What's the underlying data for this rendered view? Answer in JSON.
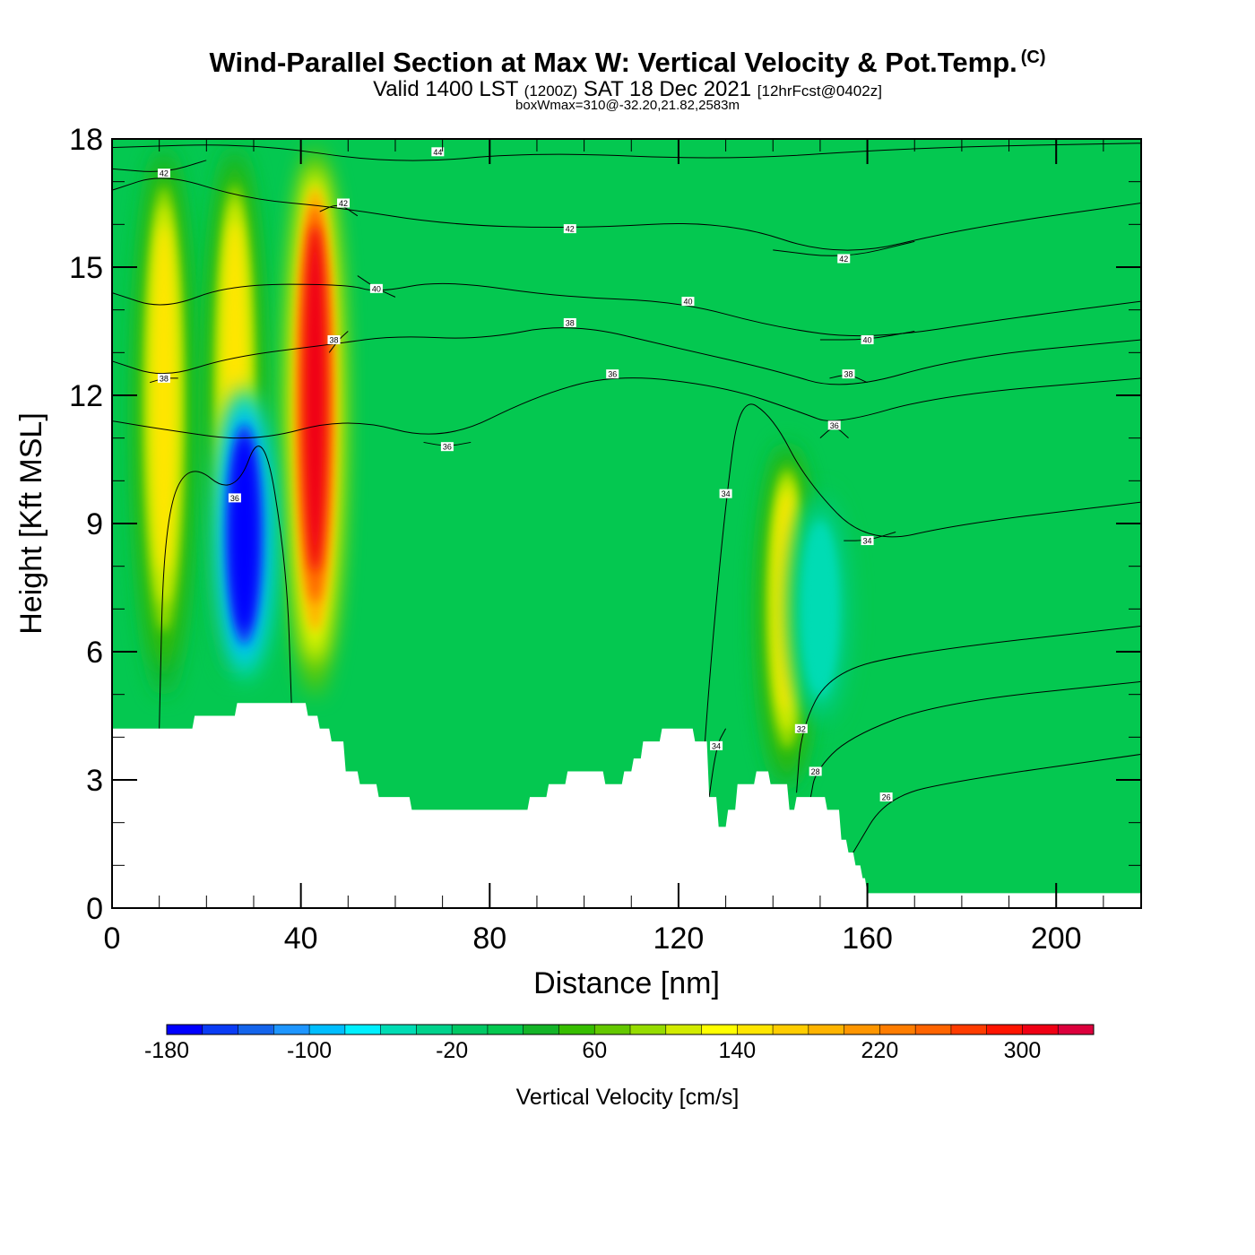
{
  "header": {
    "title": "Wind-Parallel Section at Max W: Vertical Velocity & Pot.Temp.",
    "copyright": "(C)",
    "valid_prefix": "Valid 1400 LST",
    "valid_zulu": "(1200Z)",
    "valid_date": "SAT 18 Dec 2021",
    "forecast": "[12hrFcst@0402z]",
    "box_info": "boxWmax=310@-32.20,21.82,2583m"
  },
  "chart_data": {
    "type": "heatmap",
    "xlabel": "Distance [nm]",
    "ylabel": "Height [Kft MSL]",
    "xlim": [
      0,
      218
    ],
    "ylim": [
      0,
      18
    ],
    "x_ticks": [
      0,
      40,
      80,
      120,
      160,
      200
    ],
    "y_ticks": [
      0,
      3,
      6,
      9,
      12,
      15,
      18
    ],
    "x_tick_labels": [
      "0",
      "40",
      "80",
      "120",
      "160",
      "200"
    ],
    "y_tick_labels": [
      "0",
      "3",
      "6",
      "9",
      "12",
      "15",
      "18"
    ],
    "background_level_color": "#04c850",
    "updrafts": [
      {
        "x": 11,
        "y_from": 4.5,
        "y_to": 18,
        "peak": 140
      },
      {
        "x": 26,
        "y_from": 5,
        "y_to": 18,
        "peak": 140
      },
      {
        "x": 43,
        "y_from": 4.5,
        "y_to": 18,
        "peak": 310
      },
      {
        "x": 143,
        "y_from": 2.5,
        "y_to": 11,
        "peak": 140
      }
    ],
    "downdrafts": [
      {
        "x": 28,
        "y_from": 5,
        "y_to": 12.5,
        "peak": -180
      },
      {
        "x": 150,
        "y_from": 4,
        "y_to": 10,
        "peak": -60
      }
    ],
    "terrain": {
      "x": [
        0,
        17,
        17.5,
        26,
        26.5,
        41,
        41.5,
        43.5,
        44,
        46,
        46.5,
        49,
        49.5,
        52,
        52.5,
        56,
        56.5,
        60,
        60.5,
        63,
        63.5,
        88,
        88.5,
        92,
        92.5,
        96,
        96.5,
        104,
        104.5,
        108,
        108.5,
        110,
        110.5,
        112,
        112.5,
        116,
        116.5,
        123,
        123.5,
        126,
        126.5,
        128,
        128.5,
        130,
        130.5,
        132,
        132.5,
        136,
        136.5,
        139,
        139.5,
        143,
        143.5,
        144.5,
        145,
        151,
        151.5,
        154,
        154.5,
        155.5,
        156,
        157,
        157.5,
        158.5,
        159,
        159.5,
        160,
        218
      ],
      "y": [
        4.2,
        4.2,
        4.5,
        4.5,
        4.8,
        4.8,
        4.5,
        4.5,
        4.2,
        4.2,
        3.9,
        3.9,
        3.2,
        3.2,
        2.9,
        2.9,
        2.6,
        2.6,
        2.6,
        2.6,
        2.3,
        2.3,
        2.6,
        2.6,
        2.9,
        2.9,
        3.2,
        3.2,
        2.9,
        2.9,
        3.2,
        3.2,
        3.5,
        3.5,
        3.9,
        3.9,
        4.2,
        4.2,
        3.9,
        3.9,
        2.6,
        2.6,
        1.9,
        1.9,
        2.3,
        2.3,
        2.9,
        2.9,
        3.2,
        3.2,
        2.9,
        2.9,
        2.3,
        2.3,
        2.6,
        2.6,
        2.3,
        2.3,
        1.6,
        1.6,
        1.3,
        1.3,
        1.0,
        1.0,
        0.7,
        0.7,
        0.35,
        0.35
      ]
    },
    "contours": [
      {
        "label": "44",
        "points": [
          [
            0,
            17.8
          ],
          [
            30,
            17.9
          ],
          [
            60,
            17.4
          ],
          [
            90,
            17.7
          ],
          [
            130,
            17.5
          ],
          [
            170,
            17.8
          ],
          [
            218,
            17.9
          ]
        ],
        "label_at": [
          69,
          17.7
        ]
      },
      {
        "label": "42",
        "points": [
          [
            0,
            16.8
          ],
          [
            11,
            17.2
          ],
          [
            28,
            16.6
          ],
          [
            48,
            16.4
          ],
          [
            70,
            16.0
          ],
          [
            98,
            15.9
          ],
          [
            130,
            16.1
          ],
          [
            154,
            15.2
          ],
          [
            180,
            15.9
          ],
          [
            218,
            16.5
          ]
        ],
        "label_at": [
          97,
          15.9
        ]
      },
      {
        "label": "42",
        "points": [
          [
            0,
            17.3
          ],
          [
            11,
            17.2
          ],
          [
            20,
            17.5
          ]
        ],
        "label_at": [
          11,
          17.2
        ]
      },
      {
        "label": "42",
        "points": [
          [
            140,
            15.4
          ],
          [
            155,
            15.2
          ],
          [
            170,
            15.6
          ]
        ],
        "label_at": [
          155,
          15.2
        ]
      },
      {
        "label": "42",
        "points": [
          [
            44,
            16.3
          ],
          [
            48,
            16.5
          ],
          [
            52,
            16.2
          ]
        ],
        "label_at": [
          49,
          16.5
        ]
      },
      {
        "label": "40",
        "points": [
          [
            0,
            14.4
          ],
          [
            11,
            14.0
          ],
          [
            25,
            14.6
          ],
          [
            50,
            14.6
          ],
          [
            56,
            14.4
          ],
          [
            70,
            14.7
          ],
          [
            95,
            14.3
          ],
          [
            120,
            14.2
          ],
          [
            140,
            13.6
          ],
          [
            160,
            13.3
          ],
          [
            190,
            13.8
          ],
          [
            218,
            14.2
          ]
        ],
        "label_at": [
          122,
          14.2
        ]
      },
      {
        "label": "40",
        "points": [
          [
            150,
            13.3
          ],
          [
            160,
            13.3
          ],
          [
            170,
            13.5
          ]
        ],
        "label_at": [
          160,
          13.3
        ]
      },
      {
        "label": "40",
        "points": [
          [
            52,
            14.8
          ],
          [
            56,
            14.5
          ],
          [
            60,
            14.3
          ]
        ],
        "label_at": [
          56,
          14.5
        ]
      },
      {
        "label": "38",
        "points": [
          [
            0,
            12.8
          ],
          [
            11,
            12.4
          ],
          [
            25,
            12.9
          ],
          [
            47,
            13.2
          ],
          [
            60,
            13.4
          ],
          [
            78,
            13.3
          ],
          [
            97,
            13.7
          ],
          [
            120,
            13.1
          ],
          [
            140,
            12.6
          ],
          [
            155,
            12.1
          ],
          [
            180,
            12.9
          ],
          [
            218,
            13.3
          ]
        ],
        "label_at": [
          97,
          13.7
        ]
      },
      {
        "label": "38",
        "points": [
          [
            46,
            13.0
          ],
          [
            48,
            13.3
          ],
          [
            50,
            13.5
          ]
        ],
        "label_at": [
          47,
          13.3
        ]
      },
      {
        "label": "38",
        "points": [
          [
            152,
            12.4
          ],
          [
            156,
            12.5
          ],
          [
            160,
            12.3
          ]
        ],
        "label_at": [
          156,
          12.5
        ]
      },
      {
        "label": "38",
        "points": [
          [
            8,
            12.3
          ],
          [
            11,
            12.4
          ],
          [
            14,
            12.4
          ]
        ],
        "label_at": [
          11,
          12.4
        ]
      },
      {
        "label": "36",
        "points": [
          [
            0,
            11.4
          ],
          [
            11,
            11.2
          ],
          [
            30,
            10.9
          ],
          [
            50,
            11.5
          ],
          [
            70,
            10.9
          ],
          [
            90,
            12.0
          ],
          [
            107,
            12.5
          ],
          [
            130,
            12.2
          ],
          [
            146,
            11.6
          ],
          [
            153,
            11.3
          ],
          [
            175,
            12.0
          ],
          [
            218,
            12.4
          ]
        ],
        "label_at": [
          106,
          12.5
        ]
      },
      {
        "label": "36",
        "points": [
          [
            66,
            10.9
          ],
          [
            71,
            10.8
          ],
          [
            76,
            10.9
          ]
        ],
        "label_at": [
          71,
          10.8
        ]
      },
      {
        "label": "36",
        "points": [
          [
            150,
            11.0
          ],
          [
            153,
            11.3
          ],
          [
            156,
            11.0
          ]
        ],
        "label_at": [
          153,
          11.3
        ]
      },
      {
        "label": "36",
        "points": [
          [
            10,
            4.2
          ],
          [
            11,
            9.0
          ],
          [
            16,
            10.5
          ],
          [
            26,
            9.6
          ],
          [
            32,
            11.4
          ],
          [
            37,
            8.0
          ],
          [
            38,
            4.8
          ]
        ],
        "label_at": [
          26,
          9.6
        ]
      },
      {
        "label": "34",
        "points": [
          [
            125,
            3.0
          ],
          [
            127,
            6.0
          ],
          [
            130,
            9.5
          ],
          [
            133,
            12.0
          ],
          [
            140,
            11.5
          ],
          [
            147,
            10.0
          ],
          [
            160,
            8.5
          ],
          [
            180,
            9.0
          ],
          [
            218,
            9.5
          ]
        ],
        "label_at": [
          130,
          9.7
        ]
      },
      {
        "label": "34",
        "points": [
          [
            155,
            8.6
          ],
          [
            160,
            8.6
          ],
          [
            166,
            8.8
          ]
        ],
        "label_at": [
          160,
          8.6
        ]
      },
      {
        "label": "34",
        "points": [
          [
            126,
            2.2
          ],
          [
            128,
            3.8
          ],
          [
            130,
            4.2
          ]
        ],
        "label_at": [
          128,
          3.8
        ]
      },
      {
        "label": "32",
        "points": [
          [
            145,
            2.7
          ],
          [
            146,
            4.2
          ],
          [
            152,
            5.5
          ],
          [
            170,
            6.0
          ],
          [
            218,
            6.6
          ]
        ],
        "label_at": [
          146,
          4.2
        ]
      },
      {
        "label": "28",
        "points": [
          [
            148,
            2.6
          ],
          [
            149,
            3.2
          ],
          [
            156,
            4.0
          ],
          [
            175,
            4.8
          ],
          [
            218,
            5.3
          ]
        ],
        "label_at": [
          149,
          3.2
        ]
      },
      {
        "label": "26",
        "points": [
          [
            157,
            1.3
          ],
          [
            164,
            2.6
          ],
          [
            180,
            3.0
          ],
          [
            218,
            3.6
          ]
        ],
        "label_at": [
          164,
          2.6
        ]
      }
    ]
  },
  "colorbar": {
    "label": "Vertical Velocity [cm/s]",
    "ticks": [
      -180,
      -100,
      -20,
      60,
      140,
      220,
      300
    ],
    "tick_labels": [
      "-180",
      "-100",
      "-20",
      "60",
      "140",
      "220",
      "300"
    ],
    "min": -180,
    "max": 340,
    "step": 20,
    "colors": [
      "#0000ff",
      "#0a3cf5",
      "#1464eb",
      "#1e96ff",
      "#00beff",
      "#00f0ff",
      "#00dcb4",
      "#00d28c",
      "#00c864",
      "#04c850",
      "#14b428",
      "#37be00",
      "#64c800",
      "#96dc00",
      "#d2eb00",
      "#ffff00",
      "#ffe600",
      "#ffcd00",
      "#ffb400",
      "#ff9600",
      "#ff7d00",
      "#ff6400",
      "#ff3c00",
      "#ff1400",
      "#f00014",
      "#dc003c"
    ]
  }
}
